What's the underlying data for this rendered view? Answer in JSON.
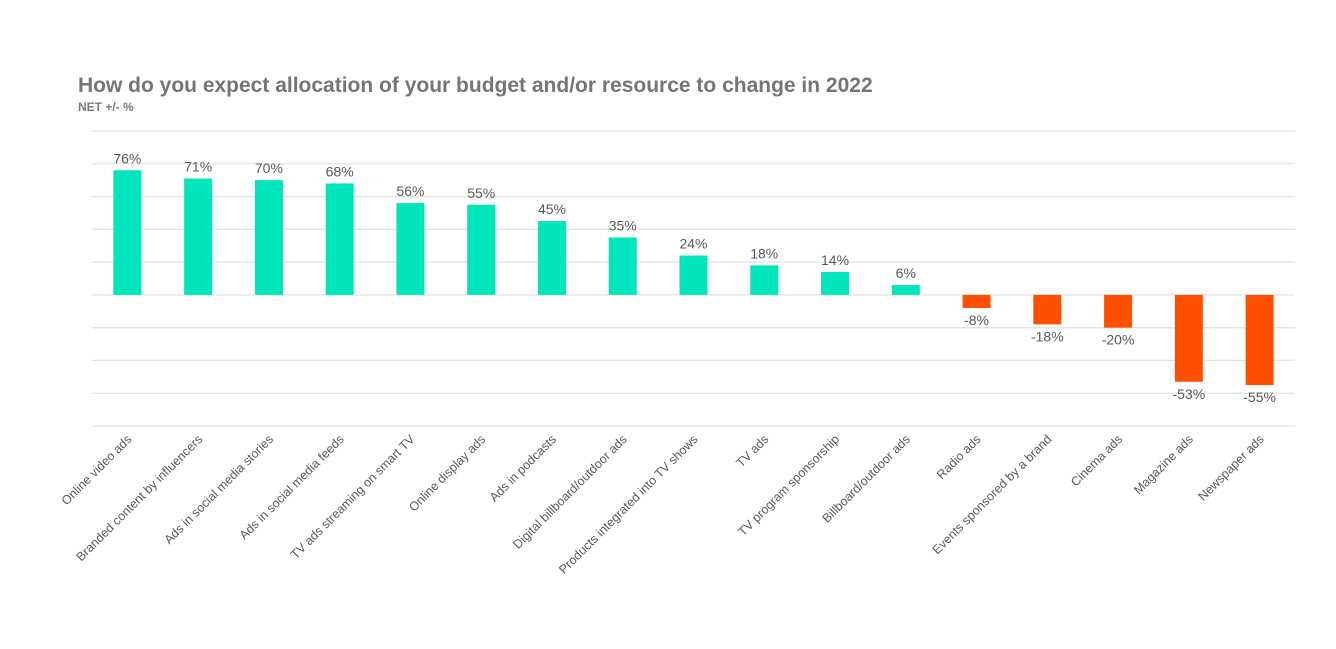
{
  "chart_data": {
    "type": "bar",
    "title": "How do you expect allocation of your budget and/or resource to change in 2022",
    "subtitle": "NET +/- %",
    "xlabel": "",
    "ylabel": "",
    "ylim": [
      -80,
      100
    ],
    "grid": true,
    "y_tick_step": 20,
    "y_tick_labels_visible": false,
    "categories": [
      "Online video ads",
      "Branded content by influencers",
      "Ads in social media stories",
      "Ads in social media feeds",
      "TV ads streaming on smart TV",
      "Online display ads",
      "Ads in podcasts",
      "Digital billboard/outdoor ads",
      "Products integrated into TV shows",
      "TV ads",
      "TV program sponsorship",
      "Billboard/outdoor ads",
      "Radio ads",
      "Events sponsored by a brand",
      "Cinema ads",
      "Magazine ads",
      "Newspaper ads"
    ],
    "values": [
      76,
      71,
      70,
      68,
      56,
      55,
      45,
      35,
      24,
      18,
      14,
      6,
      -8,
      -18,
      -20,
      -53,
      -55
    ],
    "data_labels": [
      "76%",
      "71%",
      "70%",
      "68%",
      "56%",
      "55%",
      "45%",
      "35%",
      "24%",
      "18%",
      "14%",
      "6%",
      "-8%",
      "-18%",
      "-20%",
      "-53%",
      "-55%"
    ],
    "colors": {
      "positive": "#00E5BB",
      "negative": "#FF5000",
      "grid": "#e3e3e3",
      "text": "#595959"
    }
  }
}
